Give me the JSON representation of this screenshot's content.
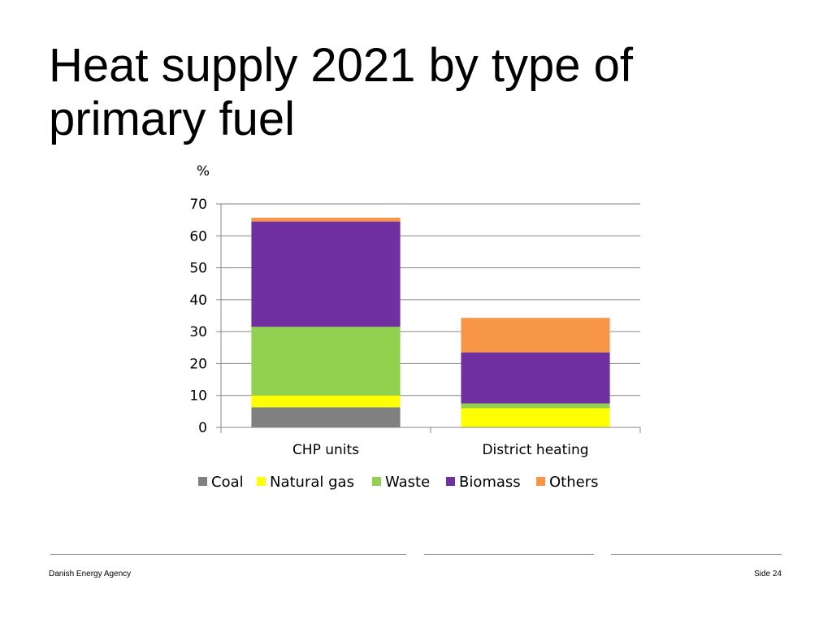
{
  "slide": {
    "title": "Heat supply 2021 by type of primary fuel",
    "footer_left": "Danish Energy Agency",
    "footer_right": "Side 24"
  },
  "chart_data": {
    "type": "bar",
    "stacked": true,
    "title": "",
    "unit_label": "%",
    "xlabel": "",
    "ylabel": "",
    "categories": [
      "CHP units",
      "District heating"
    ],
    "ylim": [
      0,
      70
    ],
    "yticks": [
      0,
      10,
      20,
      30,
      40,
      50,
      60,
      70
    ],
    "grid": true,
    "legend_position": "bottom",
    "series": [
      {
        "name": "Coal",
        "color": "#808080",
        "values": [
          6.3,
          0
        ]
      },
      {
        "name": "Natural gas",
        "color": "#ffff00",
        "values": [
          3.7,
          6.0
        ]
      },
      {
        "name": "Waste",
        "color": "#92d050",
        "values": [
          21.5,
          1.5
        ]
      },
      {
        "name": "Biomass",
        "color": "#7030a0",
        "values": [
          33.0,
          16.0
        ]
      },
      {
        "name": "Others",
        "color": "#f79646",
        "values": [
          1.2,
          10.8
        ]
      }
    ]
  }
}
